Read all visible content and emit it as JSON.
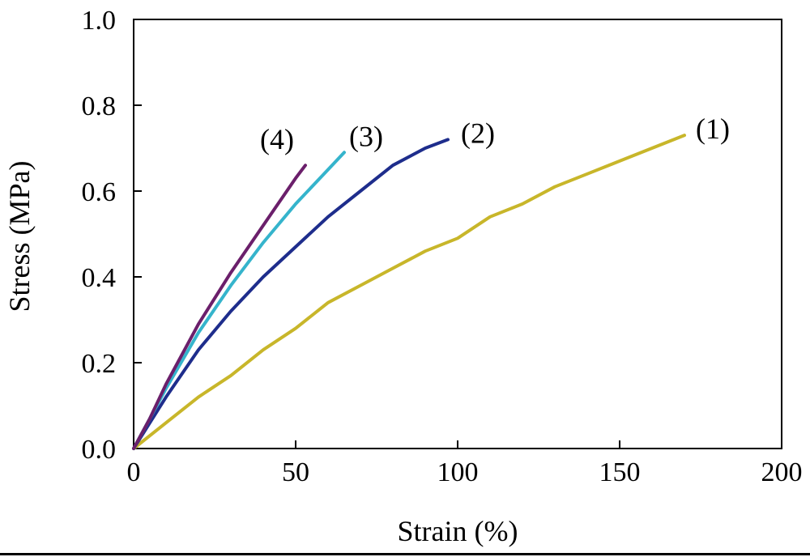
{
  "chart_data": {
    "type": "line",
    "title": "",
    "xlabel": "Strain (%)",
    "ylabel": "Stress (MPa)",
    "xlim": [
      0,
      200
    ],
    "ylim": [
      0,
      1.0
    ],
    "x_ticks": [
      0,
      50,
      100,
      150,
      200
    ],
    "x_tick_labels": [
      "0",
      "50",
      "100",
      "150",
      "200"
    ],
    "y_ticks": [
      0,
      0.2,
      0.4,
      0.6,
      0.8,
      1.0
    ],
    "y_tick_labels": [
      "0.0",
      "0.2",
      "0.4",
      "0.6",
      "0.8",
      "1.0"
    ],
    "grid": false,
    "series": [
      {
        "name": "(1)",
        "color": "#c8b62a",
        "x": [
          0,
          10,
          20,
          30,
          40,
          50,
          60,
          70,
          80,
          90,
          100,
          110,
          120,
          130,
          140,
          150,
          160,
          170
        ],
        "y": [
          0,
          0.06,
          0.12,
          0.17,
          0.23,
          0.28,
          0.34,
          0.38,
          0.42,
          0.46,
          0.49,
          0.54,
          0.57,
          0.61,
          0.64,
          0.67,
          0.7,
          0.73
        ]
      },
      {
        "name": "(2)",
        "color": "#1e2d8c",
        "x": [
          0,
          5,
          10,
          20,
          30,
          40,
          50,
          60,
          70,
          80,
          90,
          97
        ],
        "y": [
          0,
          0.06,
          0.12,
          0.23,
          0.32,
          0.4,
          0.47,
          0.54,
          0.6,
          0.66,
          0.7,
          0.72
        ]
      },
      {
        "name": "(3)",
        "color": "#35b4cc",
        "x": [
          0,
          5,
          10,
          20,
          30,
          40,
          50,
          60,
          65
        ],
        "y": [
          0,
          0.07,
          0.14,
          0.27,
          0.38,
          0.48,
          0.57,
          0.65,
          0.69
        ]
      },
      {
        "name": "(4)",
        "color": "#6b1f6b",
        "x": [
          0,
          5,
          10,
          20,
          30,
          40,
          50,
          53
        ],
        "y": [
          0,
          0.07,
          0.15,
          0.29,
          0.41,
          0.52,
          0.63,
          0.66
        ]
      }
    ]
  }
}
